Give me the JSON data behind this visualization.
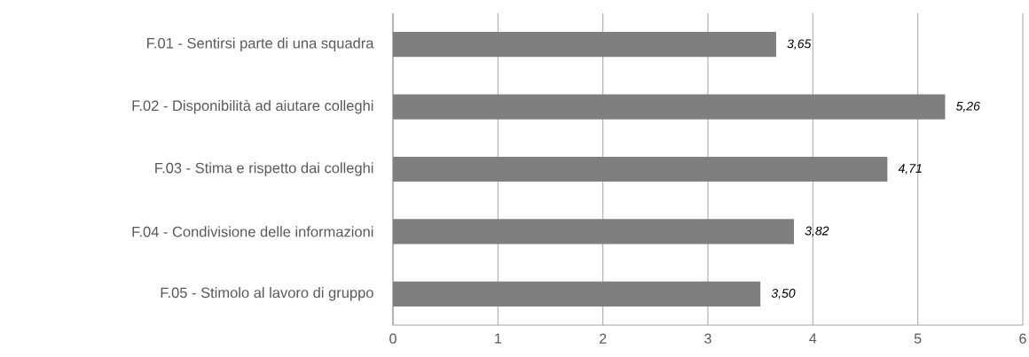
{
  "chart_data": {
    "type": "bar",
    "orientation": "horizontal",
    "categories": [
      "F.01 - Sentirsi parte di una squadra",
      "F.02 - Disponibilità ad aiutare colleghi",
      "F.03 - Stima e rispetto dai colleghi",
      "F.04 - Condivisione delle informazioni",
      "F.05 - Stimolo al lavoro di gruppo"
    ],
    "values": [
      3.65,
      5.26,
      4.71,
      3.82,
      3.5
    ],
    "value_labels": [
      "3,65",
      "5,26",
      "4,71",
      "3,82",
      "3,50"
    ],
    "color": "#7f7f7f",
    "xlim": [
      0,
      6
    ],
    "xticks": [
      0,
      1,
      2,
      3,
      4,
      5,
      6
    ],
    "grid": "x"
  }
}
